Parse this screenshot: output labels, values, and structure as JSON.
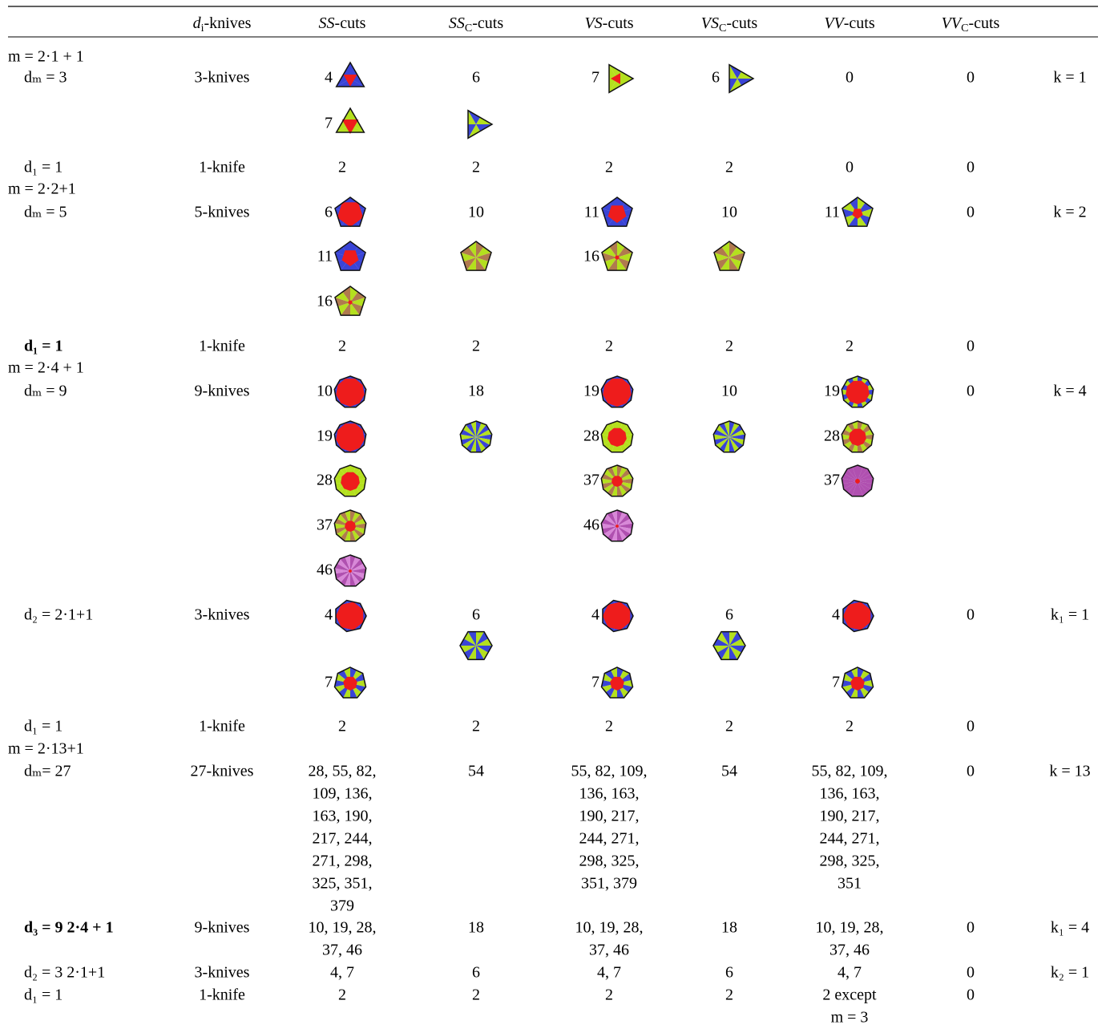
{
  "table": {
    "header": [
      [
        "d",
        "i",
        "-knives"
      ],
      [
        "SS",
        "-cuts"
      ],
      [
        "SS",
        "C",
        "-cuts"
      ],
      [
        "VS",
        "-cuts"
      ],
      [
        "VS",
        "C",
        "-cuts"
      ],
      [
        "VV",
        "-cuts"
      ],
      [
        "VV",
        "C",
        "-cuts"
      ]
    ],
    "rows": [
      [
        "m = 2·1 + 1",
        null,
        null,
        null,
        null,
        null,
        null,
        null,
        null
      ],
      [
        "dₘ = 3",
        "3-knives",
        "4",
        "6",
        "7",
        "6",
        "0",
        "0",
        "k = 1"
      ],
      [
        null,
        null,
        "7",
        null,
        null,
        null,
        null,
        null,
        null
      ],
      [
        "d₁ = 1",
        "1-knife",
        "2",
        "2",
        "2",
        "2",
        "0",
        "0",
        null
      ],
      [
        "m = 2·2+1",
        null,
        null,
        null,
        null,
        null,
        null,
        null,
        null
      ],
      [
        "dₘ = 5",
        "5-knives",
        "6",
        "10",
        "11",
        "10",
        "11",
        "0",
        "k = 2"
      ],
      [
        null,
        null,
        "11",
        null,
        "16",
        null,
        null,
        null,
        null
      ],
      [
        null,
        null,
        "16",
        null,
        null,
        null,
        null,
        null,
        null
      ],
      [
        "d₁ = 1",
        "1-knife",
        "2",
        "2",
        "2",
        "2",
        "2",
        "0",
        null
      ],
      [
        "m = 2·4 + 1",
        null,
        null,
        null,
        null,
        null,
        null,
        null,
        null
      ],
      [
        "dₘ = 9",
        "9-knives",
        "10",
        "18",
        "19",
        "10",
        "19",
        "0",
        "k = 4"
      ],
      [
        null,
        null,
        "19",
        null,
        "28",
        null,
        "28",
        null,
        null
      ],
      [
        null,
        null,
        "28",
        null,
        "37",
        null,
        "37",
        null,
        null
      ],
      [
        null,
        null,
        "37",
        null,
        "46",
        null,
        null,
        null,
        null
      ],
      [
        null,
        null,
        "46",
        null,
        null,
        null,
        null,
        null,
        null
      ],
      [
        "d₂ = 2·1+1",
        "3-knives",
        "4",
        "6",
        "4",
        "6",
        "4",
        "0",
        "k₁ = 1"
      ],
      [
        null,
        null,
        "7",
        null,
        "7",
        null,
        "7",
        null,
        null
      ],
      [
        "d₁ = 1",
        "1-knife",
        "2",
        "2",
        "2",
        "2",
        "2",
        "0",
        null
      ],
      [
        "m = 2·13+1",
        null,
        null,
        null,
        null,
        null,
        null,
        null,
        null
      ],
      [
        "dₘ= 27",
        "27-knives",
        [
          "28, 55, 82,",
          "109, 136,",
          "163, 190,",
          "217, 244,",
          "271, 298,",
          "325, 351,",
          "379"
        ],
        "54",
        [
          "55, 82, 109,",
          "136, 163,",
          "190, 217,",
          "244, 271,",
          "298, 325,",
          "351, 379"
        ],
        "54",
        [
          "55, 82, 109,",
          "136, 163,",
          "190, 217,",
          "244, 271,",
          "298, 325,",
          "351"
        ],
        "0",
        "k = 13"
      ],
      [
        "d₃ = 9 2·4 + 1",
        "9-knives",
        [
          "10, 19, 28,",
          "37, 46"
        ],
        "18",
        [
          "10, 19, 28,",
          "37, 46"
        ],
        "18",
        [
          "10, 19, 28,",
          "37, 46"
        ],
        "0",
        "k₁ = 4"
      ],
      [
        "d₂ = 3 2·1+1",
        "3-knives",
        "4, 7",
        "6",
        "4, 7",
        "6",
        "4, 7",
        "0",
        "k₂ = 1"
      ],
      [
        "d₁ = 1",
        "1-knife",
        "2",
        "2",
        "2",
        "2",
        [
          "2 except",
          "m = 3"
        ],
        "0",
        null
      ]
    ]
  }
}
